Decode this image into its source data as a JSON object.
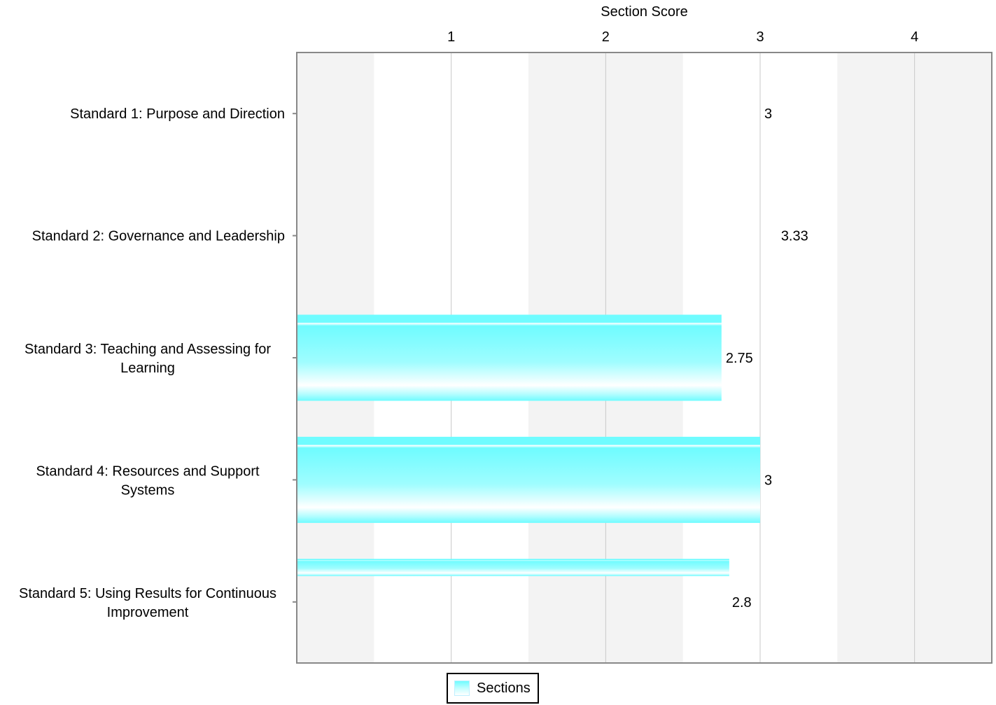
{
  "chart_data": {
    "type": "bar",
    "orientation": "horizontal",
    "xlabel": "Section Score",
    "xlim": [
      0,
      4.5
    ],
    "xticks": [
      1,
      2,
      3,
      4
    ],
    "categories": [
      [
        "Standard 1: Purpose and Direction"
      ],
      [
        "Standard 2: Governance and Leadership"
      ],
      [
        "Standard 3: Teaching and Assessing for",
        "Learning"
      ],
      [
        "Standard 4: Resources and Support",
        "Systems"
      ],
      [
        "Standard 5: Using Results for Continuous",
        "Improvement"
      ]
    ],
    "series": [
      {
        "name": "Sections",
        "values": [
          3,
          3.33,
          2.75,
          3,
          2.8
        ],
        "value_labels": [
          "3",
          "3.33",
          "2.75",
          "3",
          "2.8"
        ],
        "drawn_fraction": [
          0,
          0,
          1,
          1,
          0.2
        ]
      }
    ],
    "grid": "vertical",
    "alternating_bands": true,
    "legend_position": "bottom"
  },
  "colors": {
    "bar_top": "#6ffcff",
    "bar_mid": "#c9feff",
    "band": "#f3f3f3",
    "grid": "#c8c8c8",
    "axis": "#888888"
  },
  "legend": {
    "label": "Sections"
  }
}
